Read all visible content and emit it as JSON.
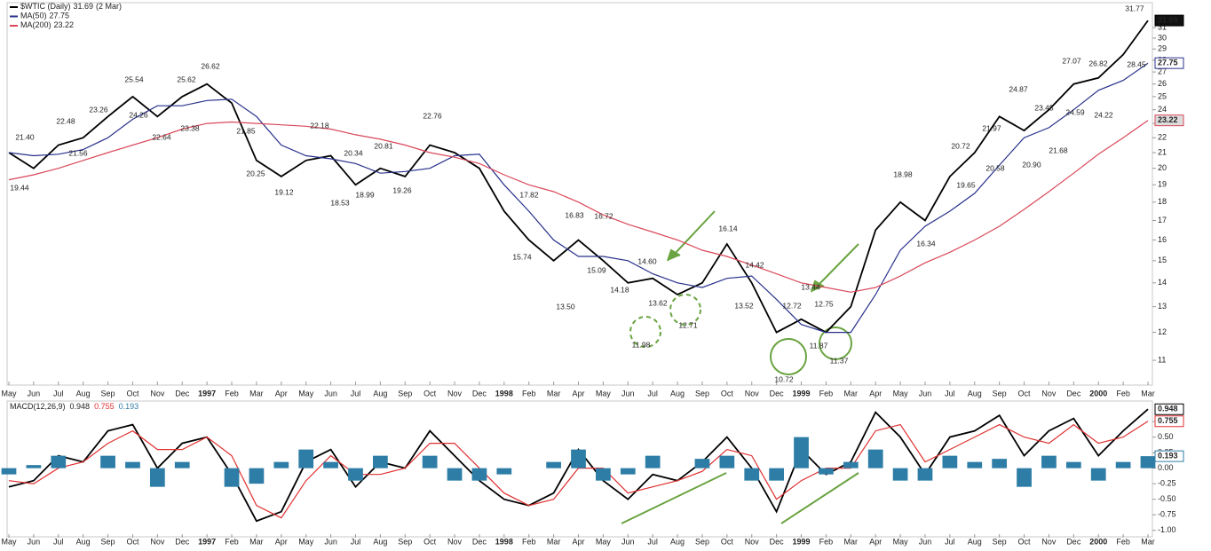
{
  "chart_data": [
    {
      "type": "line",
      "categories": [
        "May",
        "Jun",
        "Jul",
        "Aug",
        "Sep",
        "Oct",
        "Nov",
        "Dec",
        "1997",
        "Feb",
        "Mar",
        "Apr",
        "May",
        "Jun",
        "Jul",
        "Aug",
        "Sep",
        "Oct",
        "Nov",
        "Dec",
        "1998",
        "Feb",
        "Mar",
        "Apr",
        "May",
        "Jun",
        "Jul",
        "Aug",
        "Sep",
        "Oct",
        "Nov",
        "Dec",
        "1999",
        "Feb",
        "Mar",
        "Apr",
        "May",
        "Jun",
        "Jul",
        "Aug",
        "Sep",
        "Oct",
        "Nov",
        "Dec",
        "2000",
        "Feb",
        "Mar"
      ],
      "series": [
        {
          "name": "$WTIC (Daily)",
          "color": "#000000",
          "values": [
            21.0,
            20.0,
            21.5,
            22.0,
            23.5,
            25.0,
            23.5,
            25.0,
            26.0,
            24.5,
            20.5,
            19.5,
            20.5,
            20.8,
            19.0,
            20.0,
            19.5,
            21.5,
            21.0,
            20.0,
            17.5,
            16.0,
            15.0,
            16.0,
            15.0,
            14.0,
            14.2,
            13.5,
            14.0,
            15.8,
            14.0,
            12.0,
            12.5,
            12.0,
            13.0,
            16.5,
            18.0,
            17.0,
            19.5,
            21.0,
            23.5,
            22.5,
            24.0,
            26.0,
            26.5,
            28.5,
            31.69
          ]
        },
        {
          "name": "MA(50)",
          "color": "#27308a",
          "values": [
            21.0,
            20.8,
            20.9,
            21.2,
            22.0,
            23.3,
            24.3,
            24.3,
            24.7,
            24.8,
            23.5,
            21.5,
            20.8,
            20.6,
            20.3,
            19.7,
            19.8,
            20.0,
            20.8,
            20.9,
            19.0,
            17.5,
            16.0,
            15.2,
            15.2,
            15.0,
            14.4,
            14.0,
            13.8,
            14.2,
            14.3,
            13.3,
            12.3,
            12.0,
            12.0,
            13.5,
            15.5,
            16.7,
            17.5,
            18.5,
            20.2,
            22.0,
            22.7,
            24.0,
            25.5,
            26.3,
            27.75
          ]
        },
        {
          "name": "MA(200)",
          "color": "#d9485a",
          "values": [
            19.3,
            19.6,
            20.0,
            20.5,
            21.0,
            21.5,
            22.0,
            22.6,
            23.0,
            23.1,
            23.0,
            22.9,
            22.8,
            22.6,
            22.2,
            21.9,
            21.5,
            21.0,
            20.7,
            20.3,
            19.6,
            19.0,
            18.6,
            18.0,
            17.3,
            16.8,
            16.4,
            16.0,
            15.5,
            15.2,
            14.8,
            14.4,
            14.0,
            13.8,
            13.6,
            13.8,
            14.3,
            14.9,
            15.4,
            16.0,
            16.7,
            17.6,
            18.6,
            19.7,
            20.9,
            22.0,
            23.22
          ]
        }
      ],
      "date_note": "(2 Mar)",
      "log_scale": true,
      "ylim": [
        10.24,
        33.5
      ],
      "yticks": [
        11,
        12,
        13,
        14,
        15,
        16,
        17,
        18,
        19,
        20,
        21,
        22,
        23,
        24,
        25,
        26,
        27,
        28,
        29,
        30,
        31
      ],
      "annotations": {
        "values": [
          21.4,
          19.44,
          22.48,
          21.56,
          23.26,
          25.54,
          24.26,
          22.64,
          25.62,
          23.38,
          26.62,
          21.85,
          20.25,
          19.12,
          22.18,
          18.53,
          20.34,
          18.99,
          20.81,
          19.26,
          22.76,
          17.82,
          15.74,
          16.83,
          16.72,
          13.5,
          15.09,
          14.18,
          14.6,
          13.62,
          11.98,
          12.71,
          16.14,
          14.42,
          13.52,
          10.72,
          12.72,
          13.44,
          12.75,
          11.87,
          11.37,
          18.98,
          16.34,
          20.72,
          19.65,
          21.97,
          20.58,
          24.87,
          23.45,
          20.9,
          21.68,
          27.07,
          24.59,
          26.82,
          24.22,
          28.45,
          31.77
        ],
        "value_labels": [
          "21.40",
          "19.44",
          "22.48",
          "21.56",
          "23.26",
          "25.54",
          "24.26",
          "22.64",
          "25.62",
          "23.38",
          "26.62",
          "21.85",
          "20.25",
          "19.12",
          "22.18",
          "18.53",
          "20.34",
          "18.99",
          "20.81",
          "19.26",
          "22.76",
          "17.82",
          "15.74",
          "16.83",
          "16.72",
          "13.50",
          "15.09",
          "14.18",
          "14.60",
          "13.62",
          "11.98",
          "12.71",
          "16.14",
          "14.42",
          "13.52",
          "10.72",
          "12.72",
          "13.44",
          "12.75",
          "11.87",
          "11.37",
          "18.98",
          "16.34",
          "20.72",
          "19.65",
          "21.97",
          "20.58",
          "24.87",
          "23.45",
          "20.90",
          "21.68",
          "27.07",
          "24.59",
          "26.82",
          "24.22",
          "28.45",
          "31.77"
        ]
      }
    },
    {
      "type": "macd",
      "title": "MACD(12,26,9)",
      "categories": [
        "May",
        "Jun",
        "Jul",
        "Aug",
        "Sep",
        "Oct",
        "Nov",
        "Dec",
        "1997",
        "Feb",
        "Mar",
        "Apr",
        "May",
        "Jun",
        "Jul",
        "Aug",
        "Sep",
        "Oct",
        "Nov",
        "Dec",
        "1998",
        "Feb",
        "Mar",
        "Apr",
        "May",
        "Jun",
        "Jul",
        "Aug",
        "Sep",
        "Oct",
        "Nov",
        "Dec",
        "1999",
        "Feb",
        "Mar",
        "Apr",
        "May",
        "Jun",
        "Jul",
        "Aug",
        "Sep",
        "Oct",
        "Nov",
        "Dec",
        "2000",
        "Feb",
        "Mar"
      ],
      "series": [
        {
          "type": "line",
          "color": "#000000",
          "values": [
            -0.3,
            -0.2,
            0.2,
            0.1,
            0.6,
            0.7,
            0.0,
            0.4,
            0.5,
            -0.1,
            -0.85,
            -0.7,
            0.1,
            0.3,
            -0.3,
            0.1,
            0.0,
            0.6,
            0.2,
            -0.2,
            -0.5,
            -0.6,
            -0.4,
            0.3,
            -0.2,
            -0.5,
            -0.1,
            -0.2,
            0.1,
            0.5,
            0.0,
            -0.7,
            0.3,
            -0.1,
            0.1,
            0.9,
            0.5,
            -0.1,
            0.5,
            0.6,
            0.85,
            0.2,
            0.6,
            0.8,
            0.2,
            0.6,
            0.948
          ]
        },
        {
          "type": "line",
          "color": "#e03030",
          "values": [
            -0.2,
            -0.25,
            0.0,
            0.1,
            0.4,
            0.6,
            0.3,
            0.3,
            0.5,
            0.2,
            -0.6,
            -0.8,
            -0.2,
            0.2,
            -0.1,
            -0.1,
            0.0,
            0.4,
            0.4,
            0.0,
            -0.4,
            -0.6,
            -0.5,
            0.0,
            0.0,
            -0.4,
            -0.3,
            -0.2,
            -0.05,
            0.3,
            0.2,
            -0.5,
            -0.2,
            0.0,
            0.0,
            0.6,
            0.7,
            0.1,
            0.3,
            0.5,
            0.7,
            0.5,
            0.4,
            0.7,
            0.4,
            0.5,
            0.755
          ]
        },
        {
          "type": "bar",
          "color": "#2e7da6",
          "values": [
            -0.1,
            0.05,
            0.2,
            0.0,
            0.2,
            0.1,
            -0.3,
            0.1,
            0.0,
            -0.3,
            -0.25,
            0.1,
            0.3,
            0.1,
            -0.2,
            0.2,
            0.0,
            0.2,
            -0.2,
            -0.2,
            -0.1,
            0.0,
            0.1,
            0.3,
            -0.2,
            -0.1,
            0.2,
            0.0,
            0.15,
            0.2,
            -0.2,
            -0.2,
            0.5,
            -0.1,
            0.1,
            0.3,
            -0.2,
            -0.2,
            0.2,
            0.1,
            0.15,
            -0.3,
            0.2,
            0.1,
            -0.2,
            0.1,
            0.193
          ]
        }
      ],
      "ylim": [
        -1.09,
        1.08
      ],
      "yticks": [
        {
          "value": -1,
          "label": "-1.00"
        },
        -0.75,
        {
          "value": -0.5,
          "label": "-0.50"
        },
        -0.25,
        {
          "value": 0,
          "label": "0.00"
        },
        0.25,
        {
          "value": 0.5,
          "label": "0.50"
        },
        0.75
      ]
    }
  ]
}
